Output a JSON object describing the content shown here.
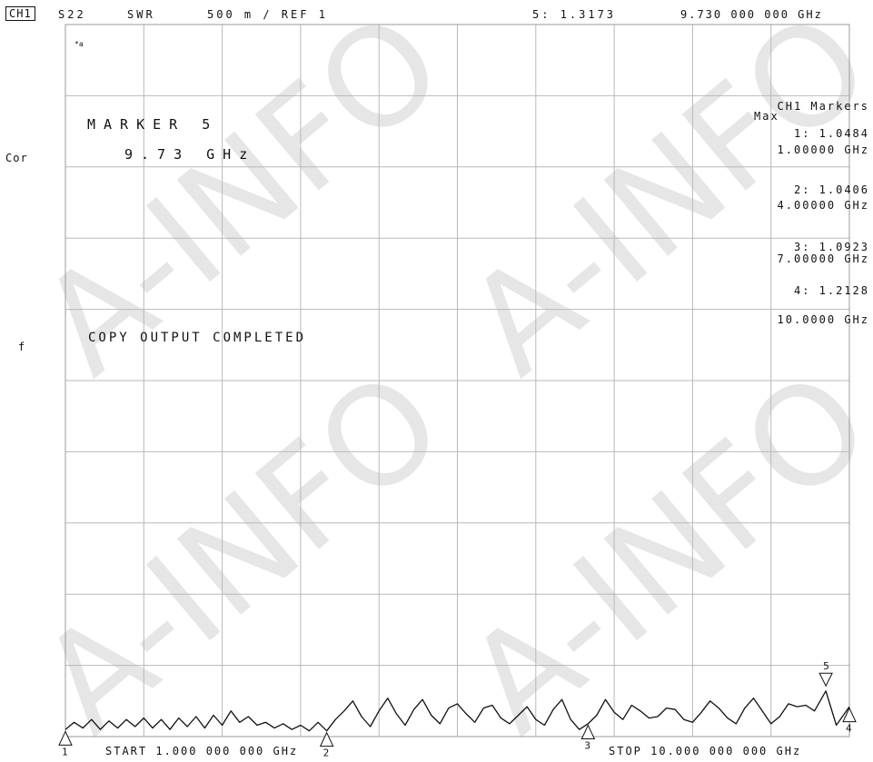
{
  "header": {
    "channel": "CH1",
    "param": "S22",
    "format": "SWR",
    "scale": "500 m / REF 1",
    "active_marker": "5: 1.3173",
    "active_freq": "9.730 000 000 GHz"
  },
  "side_labels": {
    "cor": "Cor",
    "f": "f"
  },
  "small_mark": "*a",
  "marker_box": {
    "line1": "MARKER 5",
    "line2": "9.73 GHz"
  },
  "status_message": "COPY OUTPUT COMPLETED",
  "marker_panel": {
    "title": "CH1 Markers",
    "subtitle": "Max",
    "items": [
      {
        "value": "1: 1.0484",
        "freq": "1.00000 GHz"
      },
      {
        "value": "2: 1.0406",
        "freq": "4.00000 GHz"
      },
      {
        "value": "3: 1.0923",
        "freq": "7.00000 GHz"
      },
      {
        "value": "4: 1.2128",
        "freq": "10.0000 GHz"
      }
    ]
  },
  "footer": {
    "start": "START 1.000 000 000 GHz",
    "stop": "STOP 10.000 000 000 GHz"
  },
  "watermark": "A-INFO",
  "colors": {
    "trace": "#111111",
    "grid": "#b8b8b8",
    "frame": "#999999",
    "watermark": "#e6e6e6"
  },
  "chart_data": {
    "type": "line",
    "xlim": [
      1,
      10
    ],
    "ylim": [
      1,
      6
    ],
    "grid": true,
    "x_unit": "GHz",
    "series": [
      {
        "x": [
          1.0,
          1.1,
          1.2,
          1.3,
          1.4,
          1.5,
          1.6,
          1.7,
          1.8,
          1.9,
          2.0,
          2.1,
          2.2,
          2.3,
          2.4,
          2.5,
          2.6,
          2.7,
          2.8,
          2.9,
          3.0,
          3.1,
          3.2,
          3.3,
          3.4,
          3.5,
          3.6,
          3.7,
          3.8,
          3.9,
          4.0,
          4.1,
          4.2,
          4.3,
          4.4,
          4.5,
          4.6,
          4.7,
          4.8,
          4.9,
          5.0,
          5.1,
          5.2,
          5.3,
          5.4,
          5.5,
          5.6,
          5.7,
          5.8,
          5.9,
          6.0,
          6.1,
          6.2,
          6.3,
          6.4,
          6.5,
          6.6,
          6.7,
          6.8,
          6.9,
          7.0,
          7.1,
          7.2,
          7.3,
          7.4,
          7.5,
          7.6,
          7.7,
          7.8,
          7.9,
          8.0,
          8.1,
          8.2,
          8.3,
          8.4,
          8.5,
          8.6,
          8.7,
          8.8,
          8.9,
          9.0,
          9.1,
          9.2,
          9.3,
          9.4,
          9.5,
          9.6,
          9.73,
          9.85,
          10.0
        ],
        "y": [
          1.05,
          1.1,
          1.06,
          1.12,
          1.05,
          1.11,
          1.06,
          1.12,
          1.07,
          1.13,
          1.06,
          1.12,
          1.05,
          1.13,
          1.07,
          1.14,
          1.06,
          1.15,
          1.08,
          1.18,
          1.1,
          1.14,
          1.08,
          1.1,
          1.06,
          1.09,
          1.05,
          1.08,
          1.04,
          1.1,
          1.04,
          1.12,
          1.18,
          1.25,
          1.14,
          1.07,
          1.18,
          1.27,
          1.16,
          1.08,
          1.19,
          1.26,
          1.15,
          1.09,
          1.2,
          1.23,
          1.16,
          1.1,
          1.2,
          1.22,
          1.13,
          1.09,
          1.15,
          1.21,
          1.12,
          1.08,
          1.19,
          1.26,
          1.12,
          1.05,
          1.09,
          1.15,
          1.26,
          1.17,
          1.12,
          1.22,
          1.18,
          1.13,
          1.14,
          1.2,
          1.19,
          1.12,
          1.1,
          1.17,
          1.25,
          1.2,
          1.13,
          1.09,
          1.2,
          1.27,
          1.18,
          1.09,
          1.14,
          1.23,
          1.21,
          1.22,
          1.18,
          1.32,
          1.08,
          1.21
        ]
      }
    ],
    "markers": [
      {
        "label": "1",
        "x": 1.0,
        "y": 1.0484,
        "direction": "up"
      },
      {
        "label": "2",
        "x": 4.0,
        "y": 1.0406,
        "direction": "up"
      },
      {
        "label": "3",
        "x": 7.0,
        "y": 1.0923,
        "direction": "up"
      },
      {
        "label": "4",
        "x": 10.0,
        "y": 1.2128,
        "direction": "up"
      },
      {
        "label": "5",
        "x": 9.73,
        "y": 1.3173,
        "direction": "down"
      }
    ]
  }
}
